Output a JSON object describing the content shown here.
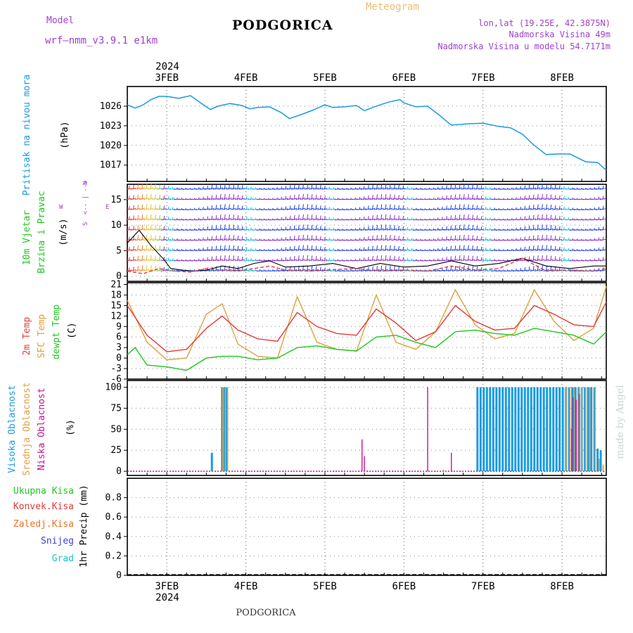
{
  "header": {
    "model_label": "Model",
    "model_name": "wrf–nmm_v3.9.1  e1km",
    "title": "PODGORICA",
    "meteogram_label": "Meteogram",
    "location": "lon,lat (19.25E, 42.3875N)",
    "elevation": "Nadmorska Visina 49m",
    "model_elevation": "Nadmorska Visina u modelu 54.7171m"
  },
  "footer": {
    "title": "PODGORICA",
    "credit": "made by Angel"
  },
  "colors": {
    "pressure": "#1a9be0",
    "temp2m": "#e03c3c",
    "sfc_temp": "#e0a03c",
    "dewpt": "#1ec81e",
    "high_cloud": "#1a9be0",
    "mid_cloud": "#e0a03c",
    "low_cloud": "#c8148c",
    "purple": "#a040d0"
  },
  "chart_data": [
    {
      "type": "line",
      "panel": "pressure",
      "ylabel_main": "Pritisak na nivou mora",
      "unit": "(hPa)",
      "ylim": [
        1014.5,
        1029.0
      ],
      "yticks": [
        1017,
        1020,
        1023,
        1026
      ],
      "top_year": "2024",
      "x_ticks": [
        "3FEB",
        "4FEB",
        "5FEB",
        "6FEB",
        "7FEB",
        "8FEB"
      ],
      "x_tick_pos": [
        0.5,
        1.5,
        2.5,
        3.5,
        4.5,
        5.5
      ],
      "xlim": [
        0,
        6.06
      ],
      "grid": true,
      "series": [
        {
          "x": [
            0.0,
            0.1,
            0.2,
            0.3,
            0.4,
            0.5,
            0.65,
            0.8,
            0.95,
            1.05,
            1.15,
            1.3,
            1.45,
            1.55,
            1.65,
            1.8,
            1.95,
            2.05,
            2.2,
            2.35,
            2.5,
            2.6,
            2.75,
            2.9,
            3.0,
            3.15,
            3.3,
            3.45,
            3.5,
            3.65,
            3.8,
            3.95,
            4.1,
            4.3,
            4.5,
            4.7,
            4.85,
            5.0,
            5.15,
            5.3,
            5.45,
            5.6,
            5.8,
            5.95,
            6.06
          ],
          "y": [
            1026.2,
            1025.7,
            1026.2,
            1027.0,
            1027.5,
            1027.5,
            1027.2,
            1027.6,
            1026.3,
            1025.5,
            1026.0,
            1026.4,
            1026.1,
            1025.6,
            1025.8,
            1025.9,
            1025.0,
            1024.1,
            1024.7,
            1025.4,
            1026.2,
            1025.8,
            1025.9,
            1026.1,
            1025.3,
            1026.0,
            1026.6,
            1027.0,
            1026.5,
            1025.9,
            1026.0,
            1024.6,
            1023.1,
            1023.3,
            1023.4,
            1022.9,
            1022.7,
            1021.7,
            1020.0,
            1018.6,
            1018.7,
            1018.7,
            1017.5,
            1017.4,
            1016.2
          ]
        }
      ]
    },
    {
      "type": "line",
      "panel": "wind",
      "ylabel_main": "10m Vjetar",
      "ylabel_sub": "Brzina i Pravac",
      "unit": "(m/s)",
      "ylim": [
        -1.0,
        18.0
      ],
      "yticks": [
        0,
        5,
        10,
        15
      ],
      "grid": true,
      "compass": {
        "n": "N",
        "s": "S",
        "w": "W",
        "e": "E",
        "arrow": "<-- | -->"
      },
      "series": [
        {
          "name": "speed",
          "x": [
            0.0,
            0.15,
            0.3,
            0.45,
            0.55,
            0.7,
            0.85,
            1.0,
            1.2,
            1.4,
            1.6,
            1.8,
            2.0,
            2.3,
            2.6,
            2.9,
            3.2,
            3.5,
            3.8,
            4.1,
            4.4,
            4.7,
            5.0,
            5.3,
            5.6,
            5.9,
            6.06
          ],
          "y": [
            6.5,
            9.0,
            6.0,
            3.5,
            1.5,
            1.2,
            1.0,
            1.2,
            2.0,
            1.5,
            2.5,
            3.0,
            1.8,
            2.0,
            2.5,
            1.5,
            2.5,
            1.8,
            2.0,
            3.0,
            2.0,
            2.5,
            3.5,
            2.0,
            1.5,
            2.0,
            2.0
          ]
        },
        {
          "name": "gust",
          "x": [
            0.0,
            0.2,
            0.4,
            0.6,
            0.8,
            1.0,
            1.2,
            1.4,
            1.6,
            1.8,
            2.0,
            2.3,
            2.6,
            2.9,
            3.2,
            3.5,
            3.8,
            4.1,
            4.4,
            4.7,
            5.0,
            5.3,
            5.6,
            5.9,
            6.06
          ],
          "y": [
            1.0,
            0.5,
            1.5,
            1.0,
            0.8,
            1.5,
            1.2,
            1.0,
            1.5,
            2.0,
            1.2,
            1.0,
            1.3,
            1.5,
            1.0,
            1.2,
            1.0,
            2.0,
            1.2,
            1.5,
            3.5,
            1.0,
            1.2,
            1.0,
            1.5
          ]
        }
      ]
    },
    {
      "type": "line",
      "panel": "temperature",
      "ylabels": [
        "2m Temp",
        "SFC Temp",
        "dewpt Temp"
      ],
      "unit": "(C)",
      "ylim": [
        -6,
        21.5
      ],
      "yticks": [
        -6,
        -3,
        0,
        3,
        6,
        9,
        12,
        15,
        18,
        21
      ],
      "grid": true,
      "series": [
        {
          "name": "2m Temp",
          "x": [
            0.0,
            0.25,
            0.5,
            0.75,
            1.0,
            1.2,
            1.4,
            1.65,
            1.9,
            2.15,
            2.4,
            2.65,
            2.9,
            3.15,
            3.4,
            3.65,
            3.9,
            4.15,
            4.4,
            4.65,
            4.9,
            5.15,
            5.4,
            5.65,
            5.9,
            6.06
          ],
          "y": [
            15.0,
            6.5,
            1.8,
            2.5,
            8.5,
            12.0,
            8.0,
            5.5,
            4.8,
            13.0,
            9.0,
            7.0,
            6.5,
            14.0,
            10.0,
            5.0,
            7.5,
            15.0,
            10.5,
            8.0,
            8.5,
            15.0,
            12.5,
            9.5,
            9.0,
            16.0
          ]
        },
        {
          "name": "SFC Temp",
          "x": [
            0.0,
            0.25,
            0.5,
            0.75,
            1.0,
            1.2,
            1.4,
            1.65,
            1.9,
            2.15,
            2.4,
            2.65,
            2.9,
            3.15,
            3.4,
            3.65,
            3.9,
            4.15,
            4.4,
            4.65,
            4.9,
            5.15,
            5.4,
            5.65,
            5.9,
            6.06
          ],
          "y": [
            16.5,
            4.5,
            -0.5,
            0.0,
            12.5,
            15.5,
            4.0,
            0.5,
            0.0,
            17.5,
            4.5,
            2.5,
            2.0,
            18.0,
            4.5,
            2.5,
            7.5,
            19.5,
            9.5,
            5.5,
            7.0,
            19.5,
            10.5,
            5.0,
            8.5,
            20.5
          ]
        },
        {
          "name": "dewpt Temp",
          "x": [
            0.0,
            0.1,
            0.25,
            0.5,
            0.75,
            1.0,
            1.2,
            1.4,
            1.65,
            1.9,
            2.15,
            2.4,
            2.65,
            2.9,
            3.15,
            3.4,
            3.65,
            3.9,
            4.15,
            4.4,
            4.65,
            4.9,
            5.15,
            5.4,
            5.65,
            5.9,
            6.06
          ],
          "y": [
            1.0,
            3.0,
            -2.0,
            -2.5,
            -3.5,
            0.0,
            0.5,
            0.5,
            -0.5,
            0.0,
            3.0,
            3.5,
            2.5,
            2.0,
            6.0,
            6.5,
            4.5,
            3.0,
            7.5,
            8.0,
            7.0,
            6.5,
            8.5,
            7.5,
            6.5,
            4.0,
            7.5
          ]
        }
      ]
    },
    {
      "type": "bar",
      "panel": "cloud",
      "ylabels": [
        "Visoka Oblacnost",
        "Srednja Oblacnost",
        "Niska Oblacnost"
      ],
      "unit": "(%)",
      "ylim": [
        -5,
        108
      ],
      "yticks": [
        0,
        25,
        50,
        75,
        100
      ],
      "grid": true,
      "series": [
        {
          "name": "Visoka Oblacnost",
          "x": [
            1.07,
            1.2,
            1.23,
            1.26,
            4.43,
            4.47,
            4.51,
            4.55,
            4.59,
            4.63,
            4.67,
            4.71,
            4.75,
            4.79,
            4.83,
            4.87,
            4.91,
            4.95,
            4.99,
            5.03,
            5.07,
            5.11,
            5.15,
            5.19,
            5.23,
            5.27,
            5.31,
            5.35,
            5.39,
            5.43,
            5.47,
            5.51,
            5.55,
            5.59,
            5.63,
            5.67,
            5.71,
            5.75,
            5.79,
            5.83,
            5.87,
            5.91,
            5.95,
            5.99
          ],
          "y": [
            22,
            100,
            100,
            100,
            100,
            100,
            100,
            100,
            100,
            100,
            100,
            100,
            100,
            100,
            100,
            100,
            100,
            100,
            100,
            100,
            100,
            100,
            100,
            100,
            100,
            100,
            100,
            100,
            100,
            100,
            100,
            100,
            100,
            100,
            100,
            100,
            100,
            100,
            100,
            100,
            100,
            100,
            27,
            25
          ]
        },
        {
          "name": "Srednja Oblacnost",
          "x": [
            1.21,
            1.24,
            1.27,
            4.0,
            4.35,
            5.55,
            5.6,
            5.65,
            5.7,
            5.75,
            5.8,
            5.85,
            5.9,
            5.97,
            6.02
          ],
          "y": [
            100,
            100,
            100,
            2,
            0,
            100,
            100,
            100,
            100,
            100,
            100,
            100,
            100,
            15,
            8
          ]
        },
        {
          "name": "Niska Oblacnost",
          "x": [
            2.97,
            3.0,
            3.8,
            4.1,
            5.62,
            5.64,
            5.68,
            5.72
          ],
          "y": [
            38,
            18,
            100,
            22,
            50,
            88,
            85,
            92
          ]
        }
      ]
    },
    {
      "type": "bar",
      "panel": "precipitation",
      "ylabels": [
        "Ukupna Kisa",
        "Konvek.Kisa",
        "Zaledj.Kisa",
        "Snijeg",
        "Grad"
      ],
      "ylabel_side": "1hr Precip (mm)",
      "ylim": [
        0,
        1.0
      ],
      "yticks": [
        0,
        0.2,
        0.4,
        0.6,
        0.8
      ],
      "bottom_year": "2024",
      "grid": true,
      "series": []
    }
  ]
}
